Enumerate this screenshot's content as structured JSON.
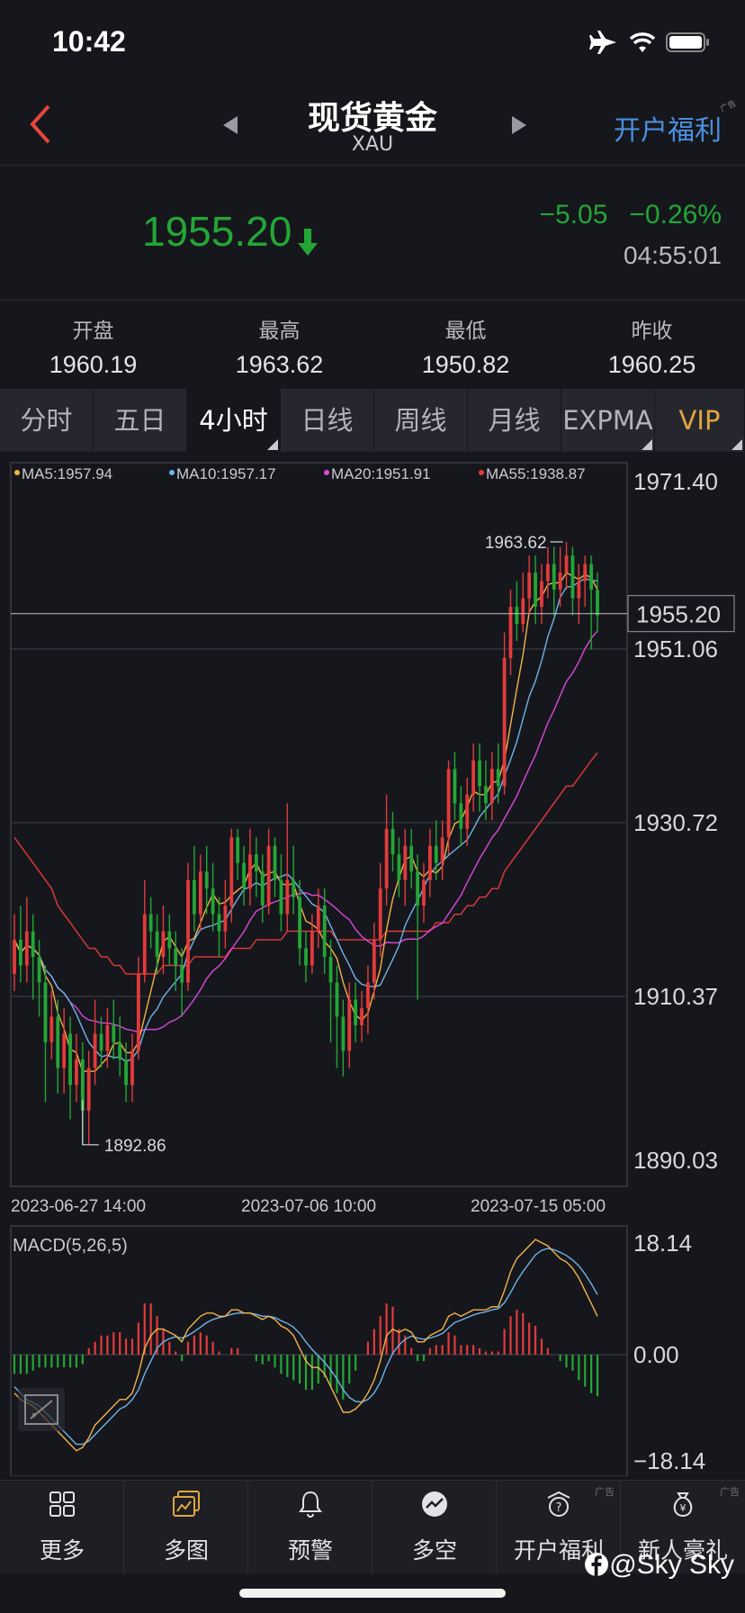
{
  "status_bar": {
    "time": "10:42"
  },
  "nav": {
    "title": "现货黄金",
    "subtitle": "XAU",
    "promo": "开户福利",
    "ad_tag": "广告"
  },
  "quote": {
    "last": "1955.20",
    "change": "−5.05",
    "change_pct": "−0.26%",
    "time": "04:55:01"
  },
  "stats": [
    {
      "label": "开盘",
      "value": "1960.19"
    },
    {
      "label": "最高",
      "value": "1963.62"
    },
    {
      "label": "最低",
      "value": "1950.82"
    },
    {
      "label": "昨收",
      "value": "1960.25"
    }
  ],
  "tabs": [
    {
      "label": "分时",
      "active": false
    },
    {
      "label": "五日",
      "active": false
    },
    {
      "label": "4小时",
      "active": true
    },
    {
      "label": "日线",
      "active": false
    },
    {
      "label": "周线",
      "active": false
    },
    {
      "label": "月线",
      "active": false
    },
    {
      "label": "EXPMA",
      "active": false
    },
    {
      "label": "VIP",
      "active": false
    }
  ],
  "colors": {
    "up": "#e23b3b",
    "down": "#23a636",
    "ma5": "#f2b24a",
    "ma10": "#6fb3ea",
    "ma20": "#d94ad9",
    "ma55": "#e23b3b",
    "grid": "#3a3b42",
    "accent": "#4b8fe0"
  },
  "chart_data": {
    "type": "line",
    "legend": [
      "MA5:1957.94",
      "MA10:1957.17",
      "MA20:1951.91",
      "MA55:1938.87"
    ],
    "y_ticks": [
      "1971.40",
      "1951.06",
      "1930.72",
      "1910.37",
      "1890.03"
    ],
    "ylim": [
      1890.03,
      1971.4
    ],
    "x_labels": [
      "2023-06-27 14:00",
      "2023-07-06 10:00",
      "2023-07-15 05:00"
    ],
    "current_price_label": "1955.20",
    "current_price": 1955.2,
    "high_label": "1963.62",
    "low_label": "1892.86",
    "candles": [
      [
        1913,
        1917,
        1920,
        1911
      ],
      [
        1917,
        1914,
        1921,
        1912
      ],
      [
        1914,
        1918,
        1922,
        1912
      ],
      [
        1918,
        1915,
        1920,
        1910
      ],
      [
        1915,
        1912,
        1917,
        1908
      ],
      [
        1912,
        1905,
        1914,
        1898
      ],
      [
        1905,
        1908,
        1911,
        1903
      ],
      [
        1908,
        1902,
        1910,
        1899
      ],
      [
        1902,
        1906,
        1909,
        1899
      ],
      [
        1906,
        1900,
        1908,
        1896
      ],
      [
        1900,
        1903,
        1906,
        1898
      ],
      [
        1903,
        1897,
        1905,
        1893
      ],
      [
        1897,
        1902,
        1904,
        1893
      ],
      [
        1902,
        1906,
        1910,
        1900
      ],
      [
        1906,
        1904,
        1908,
        1902
      ],
      [
        1904,
        1907,
        1909,
        1902
      ],
      [
        1907,
        1905,
        1910,
        1903
      ],
      [
        1905,
        1903,
        1908,
        1901
      ],
      [
        1903,
        1900,
        1905,
        1898
      ],
      [
        1900,
        1904,
        1906,
        1898
      ],
      [
        1904,
        1913,
        1915,
        1903
      ],
      [
        1913,
        1920,
        1924,
        1912
      ],
      [
        1920,
        1918,
        1922,
        1916
      ],
      [
        1918,
        1915,
        1920,
        1913
      ],
      [
        1915,
        1918,
        1921,
        1913
      ],
      [
        1918,
        1916,
        1920,
        1914
      ],
      [
        1916,
        1914,
        1918,
        1911
      ],
      [
        1914,
        1912,
        1916,
        1908
      ],
      [
        1912,
        1924,
        1926,
        1911
      ],
      [
        1924,
        1920,
        1928,
        1918
      ],
      [
        1920,
        1925,
        1927,
        1918
      ],
      [
        1925,
        1923,
        1928,
        1920
      ],
      [
        1923,
        1920,
        1926,
        1918
      ],
      [
        1920,
        1918,
        1922,
        1915
      ],
      [
        1918,
        1921,
        1924,
        1916
      ],
      [
        1921,
        1929,
        1930,
        1919
      ],
      [
        1929,
        1926,
        1930,
        1924
      ],
      [
        1926,
        1923,
        1928,
        1921
      ],
      [
        1923,
        1927,
        1930,
        1921
      ],
      [
        1927,
        1925,
        1929,
        1922
      ],
      [
        1925,
        1921,
        1927,
        1919
      ],
      [
        1921,
        1928,
        1930,
        1920
      ],
      [
        1928,
        1924,
        1929,
        1922
      ],
      [
        1924,
        1920,
        1927,
        1918
      ],
      [
        1920,
        1924,
        1933,
        1918
      ],
      [
        1924,
        1922,
        1928,
        1920
      ],
      [
        1922,
        1916,
        1924,
        1914
      ],
      [
        1916,
        1914,
        1918,
        1912
      ],
      [
        1914,
        1918,
        1920,
        1913
      ],
      [
        1918,
        1921,
        1923,
        1916
      ],
      [
        1921,
        1915,
        1923,
        1913
      ],
      [
        1915,
        1912,
        1917,
        1905
      ],
      [
        1912,
        1908,
        1914,
        1902
      ],
      [
        1908,
        1904,
        1910,
        1901
      ],
      [
        1904,
        1910,
        1912,
        1902
      ],
      [
        1910,
        1907,
        1912,
        1905
      ],
      [
        1907,
        1909,
        1911,
        1905
      ],
      [
        1909,
        1912,
        1914,
        1906
      ],
      [
        1912,
        1917,
        1919,
        1910
      ],
      [
        1917,
        1923,
        1926,
        1915
      ],
      [
        1923,
        1930,
        1934,
        1921
      ],
      [
        1930,
        1927,
        1932,
        1925
      ],
      [
        1927,
        1924,
        1929,
        1922
      ],
      [
        1924,
        1928,
        1930,
        1921
      ],
      [
        1928,
        1925,
        1930,
        1923
      ],
      [
        1925,
        1921,
        1927,
        1910
      ],
      [
        1921,
        1924,
        1926,
        1919
      ],
      [
        1924,
        1928,
        1930,
        1922
      ],
      [
        1928,
        1926,
        1931,
        1924
      ],
      [
        1926,
        1929,
        1931,
        1924
      ],
      [
        1929,
        1937,
        1938,
        1927
      ],
      [
        1937,
        1933,
        1939,
        1931
      ],
      [
        1933,
        1930,
        1935,
        1928
      ],
      [
        1930,
        1934,
        1936,
        1928
      ],
      [
        1934,
        1938,
        1940,
        1932
      ],
      [
        1938,
        1935,
        1940,
        1932
      ],
      [
        1935,
        1933,
        1938,
        1931
      ],
      [
        1933,
        1937,
        1939,
        1931
      ],
      [
        1937,
        1935,
        1940,
        1933
      ],
      [
        1935,
        1950,
        1953,
        1934
      ],
      [
        1950,
        1956,
        1958,
        1948
      ],
      [
        1956,
        1954,
        1959,
        1952
      ],
      [
        1954,
        1957,
        1960,
        1953
      ],
      [
        1957,
        1960,
        1962,
        1955
      ],
      [
        1960,
        1956,
        1962,
        1954
      ],
      [
        1956,
        1959,
        1961,
        1954
      ],
      [
        1959,
        1961,
        1963,
        1957
      ],
      [
        1961,
        1958,
        1963,
        1955
      ],
      [
        1958,
        1960,
        1963,
        1956
      ],
      [
        1960,
        1962,
        1963.6,
        1958
      ],
      [
        1962,
        1957,
        1963,
        1955
      ],
      [
        1957,
        1959,
        1961,
        1954
      ],
      [
        1959,
        1961,
        1962,
        1956
      ],
      [
        1961,
        1958,
        1962,
        1951
      ],
      [
        1958,
        1955,
        1960,
        1953
      ]
    ],
    "ma55_series": [
      1929,
      1928,
      1927,
      1926,
      1925,
      1924,
      1923,
      1921,
      1920,
      1919,
      1918,
      1917,
      1916,
      1916,
      1915,
      1915,
      1914,
      1914,
      1913,
      1913,
      1913,
      1913,
      1913,
      1913,
      1914,
      1914,
      1914,
      1914,
      1914,
      1915,
      1915,
      1915,
      1915,
      1915,
      1915,
      1916,
      1916,
      1916,
      1916,
      1917,
      1917,
      1917,
      1917,
      1917,
      1918,
      1918,
      1918,
      1918,
      1918,
      1918,
      1918,
      1918,
      1917,
      1917,
      1917,
      1917,
      1917,
      1917,
      1917,
      1917,
      1918,
      1918,
      1918,
      1918,
      1918,
      1918,
      1918,
      1918,
      1919,
      1919,
      1919,
      1920,
      1920,
      1921,
      1921,
      1922,
      1922,
      1923,
      1923,
      1925,
      1926,
      1927,
      1928,
      1929,
      1930,
      1931,
      1932,
      1933,
      1934,
      1935,
      1935,
      1936,
      1937,
      1938,
      1938.9
    ],
    "macd": {
      "label": "MACD(5,26,5)",
      "y_ticks": [
        "18.14",
        "0.00",
        "−18.14"
      ],
      "ylim": [
        -18.14,
        18.14
      ],
      "dif": [
        -6,
        -7,
        -7.5,
        -8,
        -9,
        -10,
        -11,
        -12,
        -13,
        -14,
        -15,
        -14.5,
        -13,
        -11,
        -10,
        -9,
        -8,
        -7,
        -7,
        -6,
        -3,
        1,
        3,
        4,
        4,
        3.5,
        3,
        2,
        4,
        5,
        6,
        6.5,
        6.5,
        6,
        6,
        7,
        7,
        6.5,
        6.5,
        6,
        5.5,
        6,
        5.5,
        4.5,
        4,
        3,
        1,
        -1,
        -2,
        -2,
        -3,
        -5,
        -7,
        -9,
        -9,
        -8.5,
        -7.5,
        -6,
        -4,
        -1,
        3,
        4,
        3.5,
        4,
        3.5,
        2,
        2,
        3,
        3.5,
        4,
        6,
        6.5,
        6,
        6.5,
        7,
        7,
        7,
        7.5,
        7.5,
        10,
        13,
        15,
        16,
        17,
        18,
        17.5,
        17,
        16,
        15,
        14.5,
        13.5,
        12,
        10,
        8,
        6
      ],
      "dea": [
        -5,
        -6,
        -7,
        -7.5,
        -8,
        -9,
        -10,
        -11,
        -12,
        -13,
        -14,
        -14,
        -13.5,
        -12.5,
        -11.5,
        -10.5,
        -9.5,
        -8.5,
        -8,
        -7,
        -5.5,
        -3,
        -1,
        1,
        2,
        2.5,
        2.8,
        2.6,
        3,
        3.6,
        4.3,
        5,
        5.5,
        5.8,
        6,
        6.3,
        6.5,
        6.5,
        6.5,
        6.3,
        6,
        6,
        5.8,
        5.3,
        4.9,
        4.3,
        3.3,
        2,
        0.8,
        -0.2,
        -1.2,
        -2.4,
        -3.8,
        -5.5,
        -6.7,
        -7.3,
        -7.4,
        -7,
        -6,
        -4.3,
        -1.8,
        0.2,
        1.5,
        2.4,
        2.9,
        2.6,
        2.4,
        2.6,
        2.9,
        3.3,
        4.2,
        5,
        5.4,
        5.8,
        6.2,
        6.5,
        6.7,
        7,
        7.2,
        8.1,
        9.7,
        11.5,
        13,
        14.3,
        15.6,
        16.3,
        16.6,
        16.4,
        16,
        15.5,
        14.8,
        13.9,
        12.6,
        11.1,
        9.4
      ],
      "hist": [
        -3,
        -3,
        -3,
        -2.5,
        -2,
        -2,
        -2,
        -2,
        -2,
        -2,
        -2,
        -1.5,
        1,
        2,
        3,
        3,
        3.5,
        3.5,
        2.5,
        2.5,
        5,
        8,
        8,
        6,
        4,
        2,
        0.5,
        -1,
        2,
        3,
        3.5,
        3,
        2,
        0.5,
        0,
        1,
        1,
        0,
        0,
        -1,
        -1.5,
        -1,
        -2,
        -3,
        -3.5,
        -4,
        -4.5,
        -5.5,
        -5.5,
        -4.5,
        -3.5,
        -5,
        -6,
        -7,
        -4.5,
        -2.5,
        0,
        2,
        4,
        6,
        8,
        7.5,
        4,
        3,
        1,
        -1,
        -1,
        1,
        1.5,
        1.5,
        3.5,
        3,
        1.5,
        1.5,
        1.5,
        1,
        0.5,
        0.5,
        0.5,
        4,
        6,
        7,
        6.5,
        5,
        4.5,
        2.5,
        1,
        0,
        -1,
        -2,
        -2.5,
        -4,
        -5,
        -6,
        -6.5
      ]
    }
  },
  "bottom_nav": [
    {
      "label": "更多",
      "icon": "grid-icon",
      "ad": ""
    },
    {
      "label": "多图",
      "icon": "multi-chart-icon",
      "ad": ""
    },
    {
      "label": "预警",
      "icon": "bell-icon",
      "ad": ""
    },
    {
      "label": "多空",
      "icon": "trend-circle-icon",
      "ad": ""
    },
    {
      "label": "开户福利",
      "icon": "gift-box-icon",
      "ad": "广告"
    },
    {
      "label": "新人豪礼",
      "icon": "money-bag-icon",
      "ad": "广告"
    }
  ],
  "watermark": "@Sky Sky"
}
